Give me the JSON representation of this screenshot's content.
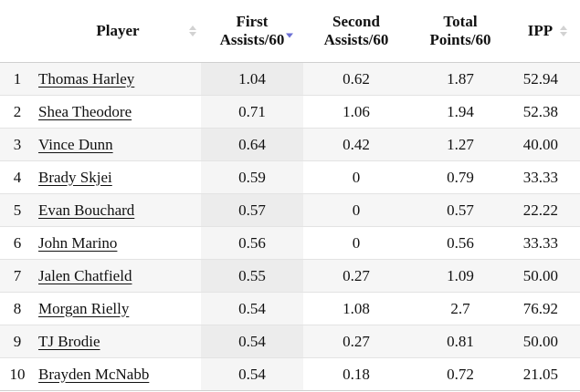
{
  "headers": {
    "player": "Player",
    "first_assists": [
      "First",
      "Assists/60"
    ],
    "second_assists": [
      "Second",
      "Assists/60"
    ],
    "total_points": [
      "Total",
      "Points/60"
    ],
    "ipp": "IPP"
  },
  "sorted_column": "first_assists",
  "sort_direction": "descending",
  "rows": [
    {
      "rank": "1",
      "player": "Thomas Harley",
      "first_assists": "1.04",
      "second_assists": "0.62",
      "total_points": "1.87",
      "ipp": "52.94"
    },
    {
      "rank": "2",
      "player": "Shea Theodore",
      "first_assists": "0.71",
      "second_assists": "1.06",
      "total_points": "1.94",
      "ipp": "52.38"
    },
    {
      "rank": "3",
      "player": "Vince Dunn",
      "first_assists": "0.64",
      "second_assists": "0.42",
      "total_points": "1.27",
      "ipp": "40.00"
    },
    {
      "rank": "4",
      "player": "Brady Skjei",
      "first_assists": "0.59",
      "second_assists": "0",
      "total_points": "0.79",
      "ipp": "33.33"
    },
    {
      "rank": "5",
      "player": "Evan Bouchard",
      "first_assists": "0.57",
      "second_assists": "0",
      "total_points": "0.57",
      "ipp": "22.22"
    },
    {
      "rank": "6",
      "player": "John Marino",
      "first_assists": "0.56",
      "second_assists": "0",
      "total_points": "0.56",
      "ipp": "33.33"
    },
    {
      "rank": "7",
      "player": "Jalen Chatfield",
      "first_assists": "0.55",
      "second_assists": "0.27",
      "total_points": "1.09",
      "ipp": "50.00"
    },
    {
      "rank": "8",
      "player": "Morgan Rielly",
      "first_assists": "0.54",
      "second_assists": "1.08",
      "total_points": "2.7",
      "ipp": "76.92"
    },
    {
      "rank": "9",
      "player": "TJ Brodie",
      "first_assists": "0.54",
      "second_assists": "0.27",
      "total_points": "0.81",
      "ipp": "50.00"
    },
    {
      "rank": "10",
      "player": "Brayden McNabb",
      "first_assists": "0.54",
      "second_assists": "0.18",
      "total_points": "0.72",
      "ipp": "21.05"
    }
  ],
  "colors": {
    "sort_active": "#6b6fd4",
    "sort_inactive": "#d2d2d2",
    "row_stripe": "#f6f6f6"
  }
}
